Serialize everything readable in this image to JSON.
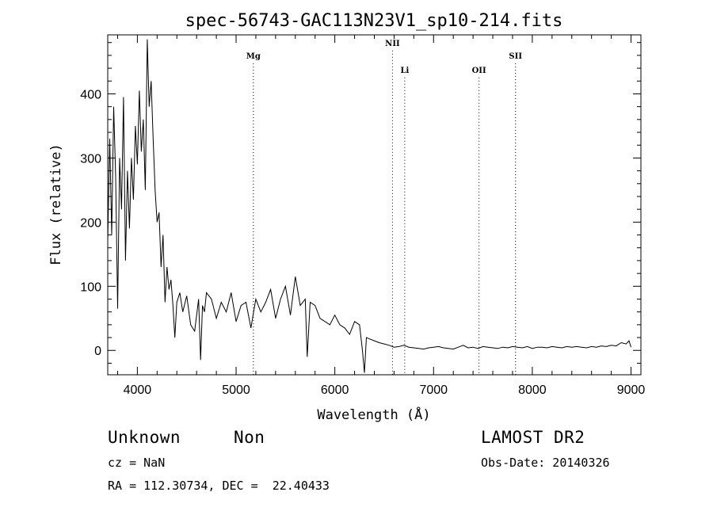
{
  "chart_data": {
    "type": "line",
    "title": "spec-56743-GAC113N23V1_sp10-214.fits",
    "xlabel": "Wavelength (Å)",
    "ylabel": "Flux (relative)",
    "xlim": [
      3700,
      9100
    ],
    "ylim": [
      -38,
      492
    ],
    "xticks": [
      4000,
      5000,
      6000,
      7000,
      8000,
      9000
    ],
    "yticks": [
      0,
      100,
      200,
      300,
      400
    ],
    "grid": false,
    "legend": "none",
    "series_color": "#000000",
    "series": [
      {
        "x": [
          3700,
          3720,
          3740,
          3760,
          3780,
          3800,
          3820,
          3840,
          3860,
          3880,
          3900,
          3920,
          3940,
          3960,
          3980,
          4000,
          4020,
          4040,
          4060,
          4080,
          4100,
          4120,
          4140,
          4160,
          4180,
          4200,
          4220,
          4240,
          4260,
          4280,
          4300,
          4320,
          4340,
          4360,
          4380,
          4400,
          4430,
          4460,
          4500,
          4540,
          4580,
          4620,
          4640,
          4660,
          4680,
          4700,
          4750,
          4800,
          4850,
          4900,
          4950,
          5000,
          5050,
          5100,
          5150,
          5200,
          5250,
          5300,
          5350,
          5400,
          5450,
          5500,
          5550,
          5600,
          5650,
          5700,
          5720,
          5750,
          5800,
          5850,
          5900,
          5950,
          6000,
          6050,
          6100,
          6150,
          6200,
          6250,
          6280,
          6300,
          6320,
          6350,
          6400,
          6450,
          6500,
          6550,
          6600,
          6650,
          6700,
          6750,
          6800,
          6850,
          6900,
          6950,
          7000,
          7050,
          7100,
          7150,
          7200,
          7250,
          7300,
          7350,
          7400,
          7450,
          7500,
          7550,
          7600,
          7650,
          7700,
          7750,
          7800,
          7850,
          7900,
          7950,
          8000,
          8050,
          8100,
          8150,
          8200,
          8250,
          8300,
          8350,
          8400,
          8450,
          8500,
          8550,
          8600,
          8650,
          8700,
          8750,
          8800,
          8850,
          8900,
          8950,
          8980,
          9000
        ],
        "y": [
          170,
          330,
          180,
          380,
          270,
          65,
          300,
          220,
          395,
          140,
          280,
          190,
          300,
          235,
          350,
          290,
          405,
          310,
          360,
          250,
          485,
          380,
          420,
          330,
          250,
          200,
          215,
          130,
          180,
          75,
          130,
          95,
          110,
          70,
          20,
          75,
          90,
          60,
          85,
          40,
          30,
          80,
          -15,
          70,
          60,
          90,
          80,
          50,
          75,
          60,
          90,
          45,
          70,
          75,
          35,
          80,
          60,
          75,
          95,
          50,
          80,
          100,
          55,
          115,
          70,
          80,
          -10,
          75,
          70,
          50,
          45,
          40,
          55,
          40,
          35,
          25,
          45,
          40,
          0,
          -35,
          20,
          18,
          15,
          12,
          10,
          8,
          5,
          6,
          8,
          5,
          4,
          3,
          2,
          4,
          5,
          6,
          4,
          3,
          2,
          5,
          8,
          4,
          5,
          3,
          6,
          5,
          4,
          3,
          5,
          4,
          6,
          5,
          4,
          6,
          3,
          5,
          5,
          4,
          6,
          5,
          4,
          6,
          5,
          6,
          5,
          4,
          6,
          5,
          7,
          6,
          8,
          7,
          12,
          10,
          15,
          5
        ]
      }
    ],
    "annotations": [
      {
        "label": "Mg",
        "x": 5175,
        "label_y": 455
      },
      {
        "label": "NII",
        "x": 6584,
        "label_y": 475
      },
      {
        "label": "Li",
        "x": 6708,
        "label_y": 433
      },
      {
        "label": "OII",
        "x": 7460,
        "label_y": 433
      },
      {
        "label": "SII",
        "x": 7830,
        "label_y": 455
      }
    ]
  },
  "info": {
    "class_label": "Unknown",
    "subclass_label": "Non",
    "survey": "LAMOST DR2",
    "cz": "cz = NaN",
    "obs_date": "Obs-Date: 20140326",
    "coords": "RA = 112.30734, DEC =  22.40433"
  }
}
